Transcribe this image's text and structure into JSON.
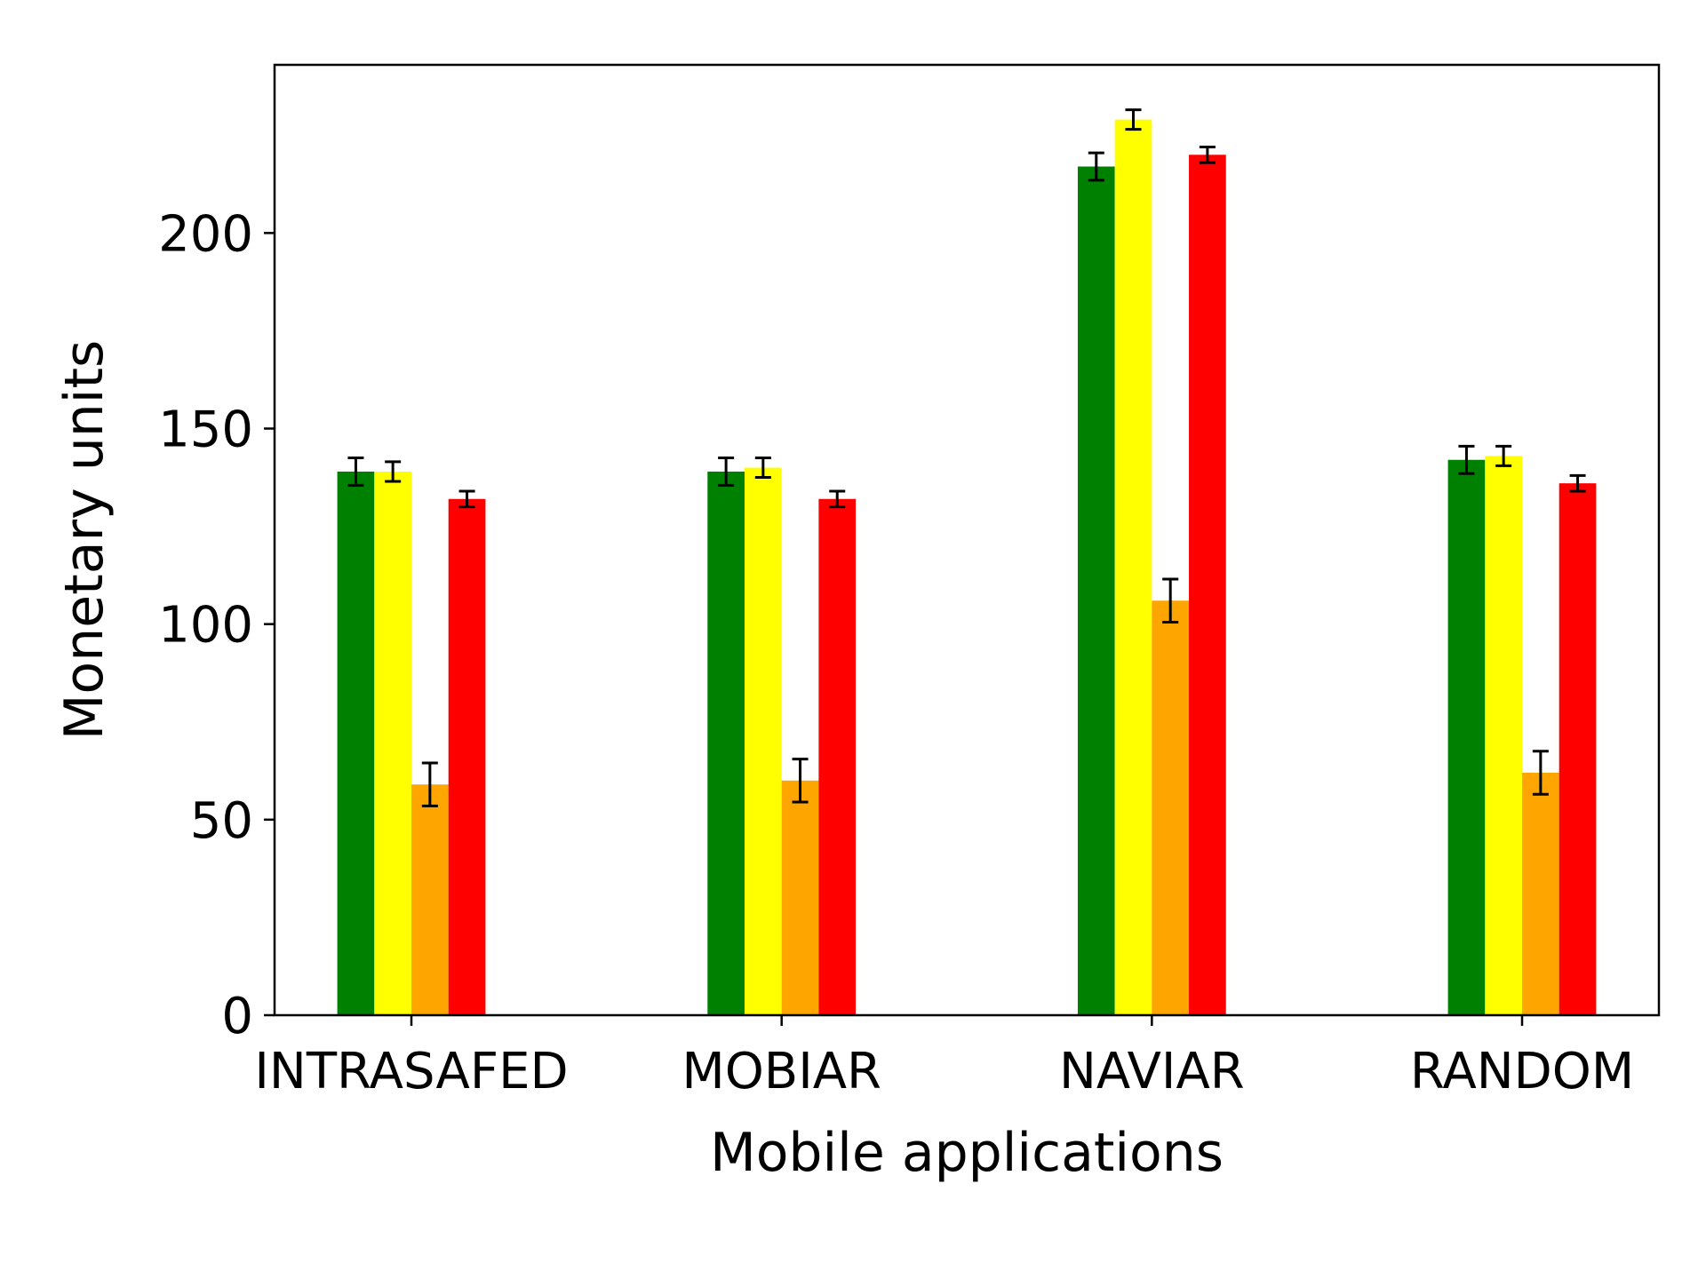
{
  "chart_data": {
    "type": "bar",
    "title": "",
    "xlabel": "Mobile applications",
    "ylabel": "Monetary units",
    "categories": [
      "INTRASAFED",
      "MOBIAR",
      "NAVIAR",
      "RANDOM"
    ],
    "ylim": [
      0,
      243
    ],
    "yticks": [
      "0",
      "50",
      "100",
      "150",
      "200"
    ],
    "grid": false,
    "legend": "none",
    "series": [
      {
        "color": "#008000",
        "values": [
          139,
          139,
          217,
          142
        ],
        "errors": [
          3.5,
          3.5,
          3.5,
          3.5
        ]
      },
      {
        "color": "#ffff00",
        "values": [
          139,
          140,
          229,
          143
        ],
        "errors": [
          2.5,
          2.5,
          2.5,
          2.5
        ]
      },
      {
        "color": "#ffa500",
        "values": [
          59,
          60,
          106,
          62
        ],
        "errors": [
          5.5,
          5.5,
          5.5,
          5.5
        ]
      },
      {
        "color": "#ff0000",
        "values": [
          132,
          132,
          220,
          136
        ],
        "errors": [
          2,
          2,
          2,
          2
        ]
      }
    ]
  }
}
